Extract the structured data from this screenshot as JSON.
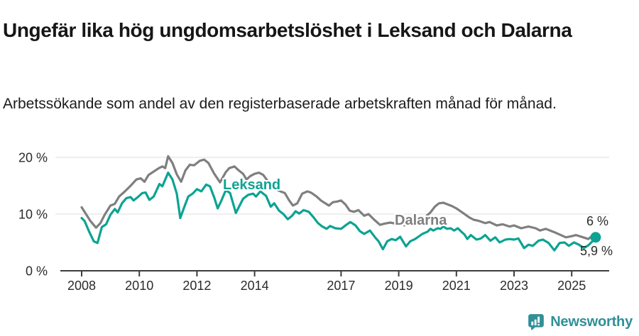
{
  "title": "Ungefär lika hög ungdomsarbetslöshet i Leksand och Dalarna",
  "subtitle": "Arbetssökande som andel av den registerbaserade arbetskraften månad för månad.",
  "branding": {
    "name": "Newsworthy",
    "icon": "newsworthy-speech-bubble-bar-chart-icon",
    "color": "#2f9097"
  },
  "chart_data": {
    "type": "line",
    "unit": "%",
    "grid": "horizontal-only",
    "legend_position": "inline-labels-on-lines",
    "style": {
      "grid_color": "#dcdcdc",
      "axis_color": "#3d3d3d",
      "text_color": "#2b2b2b",
      "background": "#ffffff"
    },
    "x_axis": {
      "label": "",
      "range_years": [
        2008.0,
        2025.83
      ],
      "ticks": [
        2008,
        2010,
        2012,
        2014,
        2017,
        2019,
        2021,
        2023,
        2025
      ],
      "labels": [
        "2008",
        "2010",
        "2012",
        "2014",
        "2017",
        "2019",
        "2021",
        "2023",
        "2025"
      ]
    },
    "y_axis": {
      "label": "",
      "range": [
        0,
        22
      ],
      "ticks": [
        0,
        10,
        20
      ],
      "labels": [
        "0 %",
        "10 %",
        "20 %"
      ]
    },
    "series": [
      {
        "name": "Leksand",
        "color": "#0ca392",
        "end_label": "5,9 %",
        "end_value": 5.9,
        "end_dot": true,
        "points": [
          [
            2008.0,
            9.3
          ],
          [
            2008.1,
            8.8
          ],
          [
            2008.25,
            7.0
          ],
          [
            2008.42,
            5.2
          ],
          [
            2008.55,
            4.9
          ],
          [
            2008.7,
            7.7
          ],
          [
            2008.85,
            8.2
          ],
          [
            2009.0,
            9.9
          ],
          [
            2009.15,
            10.9
          ],
          [
            2009.25,
            10.3
          ],
          [
            2009.4,
            11.9
          ],
          [
            2009.55,
            12.8
          ],
          [
            2009.7,
            13.0
          ],
          [
            2009.8,
            12.4
          ],
          [
            2009.95,
            13.0
          ],
          [
            2010.1,
            13.7
          ],
          [
            2010.22,
            13.8
          ],
          [
            2010.35,
            12.5
          ],
          [
            2010.5,
            13.1
          ],
          [
            2010.7,
            15.3
          ],
          [
            2010.8,
            14.9
          ],
          [
            2011.0,
            17.3
          ],
          [
            2011.15,
            16.1
          ],
          [
            2011.3,
            13.6
          ],
          [
            2011.42,
            9.3
          ],
          [
            2011.55,
            11.1
          ],
          [
            2011.7,
            13.1
          ],
          [
            2011.85,
            13.6
          ],
          [
            2012.0,
            14.4
          ],
          [
            2012.15,
            14.0
          ],
          [
            2012.32,
            15.2
          ],
          [
            2012.45,
            14.9
          ],
          [
            2012.6,
            12.9
          ],
          [
            2012.72,
            11.0
          ],
          [
            2012.85,
            12.4
          ],
          [
            2013.0,
            14.2
          ],
          [
            2013.15,
            13.7
          ],
          [
            2013.35,
            10.2
          ],
          [
            2013.48,
            11.5
          ],
          [
            2013.6,
            12.7
          ],
          [
            2013.78,
            13.4
          ],
          [
            2013.95,
            13.6
          ],
          [
            2014.05,
            13.1
          ],
          [
            2014.2,
            14.0
          ],
          [
            2014.4,
            13.2
          ],
          [
            2014.56,
            11.3
          ],
          [
            2014.68,
            11.9
          ],
          [
            2014.85,
            10.6
          ],
          [
            2015.0,
            10.0
          ],
          [
            2015.15,
            9.1
          ],
          [
            2015.3,
            9.7
          ],
          [
            2015.42,
            10.5
          ],
          [
            2015.55,
            10.1
          ],
          [
            2015.7,
            10.7
          ],
          [
            2015.88,
            10.4
          ],
          [
            2016.05,
            9.4
          ],
          [
            2016.2,
            8.4
          ],
          [
            2016.35,
            7.8
          ],
          [
            2016.5,
            7.4
          ],
          [
            2016.62,
            7.9
          ],
          [
            2016.8,
            7.5
          ],
          [
            2017.0,
            7.4
          ],
          [
            2017.18,
            8.1
          ],
          [
            2017.32,
            8.6
          ],
          [
            2017.5,
            8.0
          ],
          [
            2017.65,
            7.0
          ],
          [
            2017.8,
            6.5
          ],
          [
            2018.0,
            7.1
          ],
          [
            2018.18,
            5.9
          ],
          [
            2018.3,
            5.2
          ],
          [
            2018.45,
            3.8
          ],
          [
            2018.6,
            5.2
          ],
          [
            2018.75,
            5.6
          ],
          [
            2018.9,
            5.4
          ],
          [
            2019.05,
            6.0
          ],
          [
            2019.25,
            4.3
          ],
          [
            2019.4,
            5.2
          ],
          [
            2019.57,
            5.6
          ],
          [
            2019.82,
            6.5
          ],
          [
            2020.0,
            6.9
          ],
          [
            2020.1,
            7.4
          ],
          [
            2020.2,
            7.1
          ],
          [
            2020.35,
            7.5
          ],
          [
            2020.45,
            7.4
          ],
          [
            2020.55,
            7.8
          ],
          [
            2020.67,
            7.4
          ],
          [
            2020.8,
            7.5
          ],
          [
            2020.92,
            7.1
          ],
          [
            2021.05,
            7.5
          ],
          [
            2021.17,
            6.9
          ],
          [
            2021.28,
            6.4
          ],
          [
            2021.38,
            5.6
          ],
          [
            2021.5,
            6.3
          ],
          [
            2021.7,
            5.5
          ],
          [
            2021.85,
            5.7
          ],
          [
            2022.0,
            6.3
          ],
          [
            2022.18,
            5.3
          ],
          [
            2022.35,
            5.9
          ],
          [
            2022.5,
            5.0
          ],
          [
            2022.7,
            5.5
          ],
          [
            2022.85,
            5.6
          ],
          [
            2023.0,
            5.5
          ],
          [
            2023.15,
            5.7
          ],
          [
            2023.35,
            4.0
          ],
          [
            2023.5,
            4.6
          ],
          [
            2023.65,
            4.4
          ],
          [
            2023.85,
            5.3
          ],
          [
            2024.0,
            5.5
          ],
          [
            2024.2,
            4.9
          ],
          [
            2024.4,
            3.6
          ],
          [
            2024.58,
            4.9
          ],
          [
            2024.75,
            5.0
          ],
          [
            2024.9,
            4.4
          ],
          [
            2025.08,
            5.0
          ],
          [
            2025.25,
            4.6
          ],
          [
            2025.42,
            4.0
          ],
          [
            2025.58,
            4.5
          ],
          [
            2025.72,
            5.2
          ],
          [
            2025.83,
            5.9
          ]
        ]
      },
      {
        "name": "Dalarna",
        "color": "#7f7f7f",
        "end_label": "6 %",
        "end_value": 6.0,
        "end_dot": false,
        "points": [
          [
            2008.0,
            11.2
          ],
          [
            2008.15,
            10.0
          ],
          [
            2008.3,
            8.8
          ],
          [
            2008.5,
            7.6
          ],
          [
            2008.65,
            8.4
          ],
          [
            2008.8,
            9.9
          ],
          [
            2009.0,
            11.5
          ],
          [
            2009.15,
            11.8
          ],
          [
            2009.3,
            13.1
          ],
          [
            2009.5,
            14.0
          ],
          [
            2009.7,
            15.0
          ],
          [
            2009.9,
            16.1
          ],
          [
            2010.05,
            16.3
          ],
          [
            2010.18,
            15.7
          ],
          [
            2010.32,
            16.9
          ],
          [
            2010.5,
            17.5
          ],
          [
            2010.68,
            18.1
          ],
          [
            2010.8,
            18.4
          ],
          [
            2010.9,
            18.1
          ],
          [
            2011.0,
            20.2
          ],
          [
            2011.15,
            19.0
          ],
          [
            2011.3,
            17.0
          ],
          [
            2011.45,
            15.7
          ],
          [
            2011.6,
            17.7
          ],
          [
            2011.75,
            18.7
          ],
          [
            2011.9,
            18.6
          ],
          [
            2012.1,
            19.4
          ],
          [
            2012.25,
            19.6
          ],
          [
            2012.4,
            19.0
          ],
          [
            2012.6,
            17.1
          ],
          [
            2012.8,
            15.6
          ],
          [
            2013.0,
            17.4
          ],
          [
            2013.12,
            18.1
          ],
          [
            2013.3,
            18.4
          ],
          [
            2013.45,
            17.7
          ],
          [
            2013.6,
            17.1
          ],
          [
            2013.72,
            16.1
          ],
          [
            2013.85,
            16.7
          ],
          [
            2014.0,
            17.1
          ],
          [
            2014.15,
            17.3
          ],
          [
            2014.3,
            16.9
          ],
          [
            2014.5,
            15.5
          ],
          [
            2014.7,
            14.5
          ],
          [
            2014.9,
            14.0
          ],
          [
            2015.05,
            13.7
          ],
          [
            2015.2,
            12.4
          ],
          [
            2015.33,
            11.5
          ],
          [
            2015.48,
            11.9
          ],
          [
            2015.65,
            13.6
          ],
          [
            2015.83,
            14.0
          ],
          [
            2015.95,
            13.8
          ],
          [
            2016.15,
            13.1
          ],
          [
            2016.3,
            12.4
          ],
          [
            2016.45,
            11.9
          ],
          [
            2016.58,
            11.5
          ],
          [
            2016.72,
            12.1
          ],
          [
            2016.85,
            12.2
          ],
          [
            2017.0,
            12.4
          ],
          [
            2017.15,
            11.7
          ],
          [
            2017.3,
            10.6
          ],
          [
            2017.45,
            10.4
          ],
          [
            2017.6,
            10.7
          ],
          [
            2017.8,
            9.7
          ],
          [
            2017.95,
            10.0
          ],
          [
            2018.15,
            9.0
          ],
          [
            2018.35,
            8.1
          ],
          [
            2018.5,
            8.3
          ],
          [
            2018.7,
            8.5
          ],
          [
            2018.9,
            8.3
          ],
          [
            2019.05,
            8.5
          ],
          [
            2019.2,
            8.0
          ],
          [
            2019.4,
            8.5
          ],
          [
            2019.6,
            8.6
          ],
          [
            2019.8,
            8.8
          ],
          [
            2019.95,
            9.6
          ],
          [
            2020.1,
            10.3
          ],
          [
            2020.25,
            11.3
          ],
          [
            2020.4,
            11.9
          ],
          [
            2020.55,
            12.0
          ],
          [
            2020.7,
            11.7
          ],
          [
            2020.85,
            11.4
          ],
          [
            2021.0,
            11.0
          ],
          [
            2021.2,
            10.3
          ],
          [
            2021.45,
            9.4
          ],
          [
            2021.6,
            9.0
          ],
          [
            2021.78,
            8.8
          ],
          [
            2022.0,
            8.4
          ],
          [
            2022.15,
            8.6
          ],
          [
            2022.4,
            8.0
          ],
          [
            2022.6,
            8.2
          ],
          [
            2022.85,
            7.8
          ],
          [
            2023.0,
            8.0
          ],
          [
            2023.25,
            7.5
          ],
          [
            2023.5,
            7.8
          ],
          [
            2023.75,
            7.5
          ],
          [
            2023.9,
            7.1
          ],
          [
            2024.1,
            7.4
          ],
          [
            2024.4,
            6.8
          ],
          [
            2024.62,
            6.3
          ],
          [
            2024.8,
            5.9
          ],
          [
            2025.0,
            6.1
          ],
          [
            2025.15,
            6.3
          ],
          [
            2025.4,
            5.9
          ],
          [
            2025.58,
            5.6
          ],
          [
            2025.72,
            6.2
          ],
          [
            2025.83,
            6.0
          ]
        ]
      }
    ]
  }
}
